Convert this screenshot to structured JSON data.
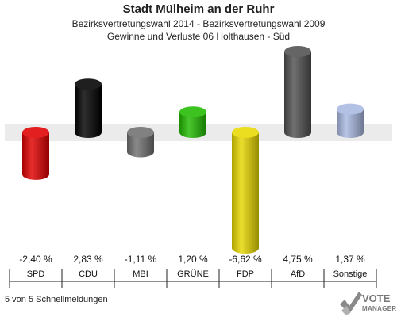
{
  "header": {
    "title": "Stadt Mülheim an der Ruhr",
    "subtitle1": "Bezirksvertretungswahl 2014 - Bezirksvertretungswahl 2009",
    "subtitle2": "Gewinne und Verluste 06 Holthausen - Süd"
  },
  "footer": {
    "status": "5 von 5 Schnellmeldungen"
  },
  "logo": {
    "line1": "VOTE",
    "line2": "MANAGER"
  },
  "chart_data": {
    "type": "bar",
    "categories": [
      "SPD",
      "CDU",
      "MBI",
      "GRÜNE",
      "FDP",
      "AfD",
      "Sonstige"
    ],
    "values": [
      -2.4,
      2.83,
      -1.11,
      1.2,
      -6.62,
      4.75,
      1.37
    ],
    "value_labels": [
      "-2,40 %",
      "2,83 %",
      "-1,11 %",
      "1,20 %",
      "-6,62 %",
      "4,75 %",
      "1,37 %"
    ],
    "colors": [
      "#e00000",
      "#000000",
      "#707070",
      "#22bb00",
      "#e8d800",
      "#505050",
      "#a9b8e0"
    ],
    "ylim": [
      -6.62,
      4.75
    ],
    "grid": false
  }
}
